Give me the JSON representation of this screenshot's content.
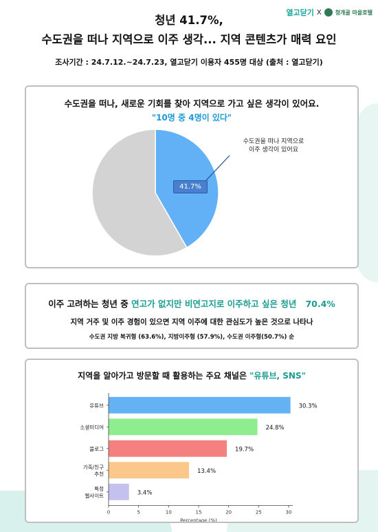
{
  "header": {
    "brand": "열고닫기",
    "x": "X",
    "partner": "청개골 마을호텔",
    "title_line1": "청년 41.7%,",
    "title_line2": "수도권을 떠나 지역으로 이주 생각... 지역 콘텐츠가 매력 요인",
    "survey": "조사기간 : 24.7.12.~24.7.23, 열고닫기 이용자 455명 대상 (출처 : 열고닫기)"
  },
  "panel1": {
    "question": "수도권을 떠나, 새로운 기회를 찾아 지역으로 가고 싶은 생각이 있어요.",
    "highlight": "\"10명 중 4명이 있다\"",
    "callout_line1": "수도권을 떠나 지역으로",
    "callout_line2": "이주 생각이 있어요",
    "badge": "41.7%"
  },
  "panel2": {
    "line1_a": "이주 고려하는 청년 중 ",
    "line1_b": "연고가 없지만 비연고지로 이주하고 싶은 청년",
    "line1_c": "70.4%",
    "line2": "지역 거주 및 이주 경험이 있으면 지역 이주에 대한 관심도가 높은 것으로 나타나",
    "line3": "수도권 지방 복귀형 (63.6%), 지방이주형 (57.9%), 수도권 이주형(50.7%) 순"
  },
  "panel3": {
    "title_a": "지역을 알아가고 방문할 때 활용하는 주요 채널은 ",
    "title_b": "\"유튜브, SNS\""
  },
  "chart_data": [
    {
      "type": "pie",
      "categories": [
        "수도권을 떠나 지역으로 이주 생각이 있어요",
        ""
      ],
      "values": [
        41.7,
        58.3
      ],
      "colors": [
        "#62b0f6",
        "#d3d3d3"
      ],
      "data_labels": [
        "41.7%"
      ]
    },
    {
      "type": "bar",
      "orientation": "horizontal",
      "categories": [
        [
          "유튜브"
        ],
        [
          "소셜미디어"
        ],
        [
          "블로그"
        ],
        [
          "가족/친구",
          "추천"
        ],
        [
          "특정",
          "웹사이트"
        ]
      ],
      "values": [
        30.3,
        24.8,
        19.7,
        13.4,
        3.4
      ],
      "value_labels": [
        "30.3%",
        "24.8%",
        "19.7%",
        "13.4%",
        "3.4%"
      ],
      "colors": [
        "#64b2f4",
        "#8eed8e",
        "#f4807f",
        "#fcc78b",
        "#c5c1ef"
      ],
      "xlabel": "Percentage (%)",
      "xlim": [
        0,
        30
      ],
      "xticks": [
        0,
        5,
        10,
        15,
        20,
        25,
        30
      ]
    }
  ]
}
